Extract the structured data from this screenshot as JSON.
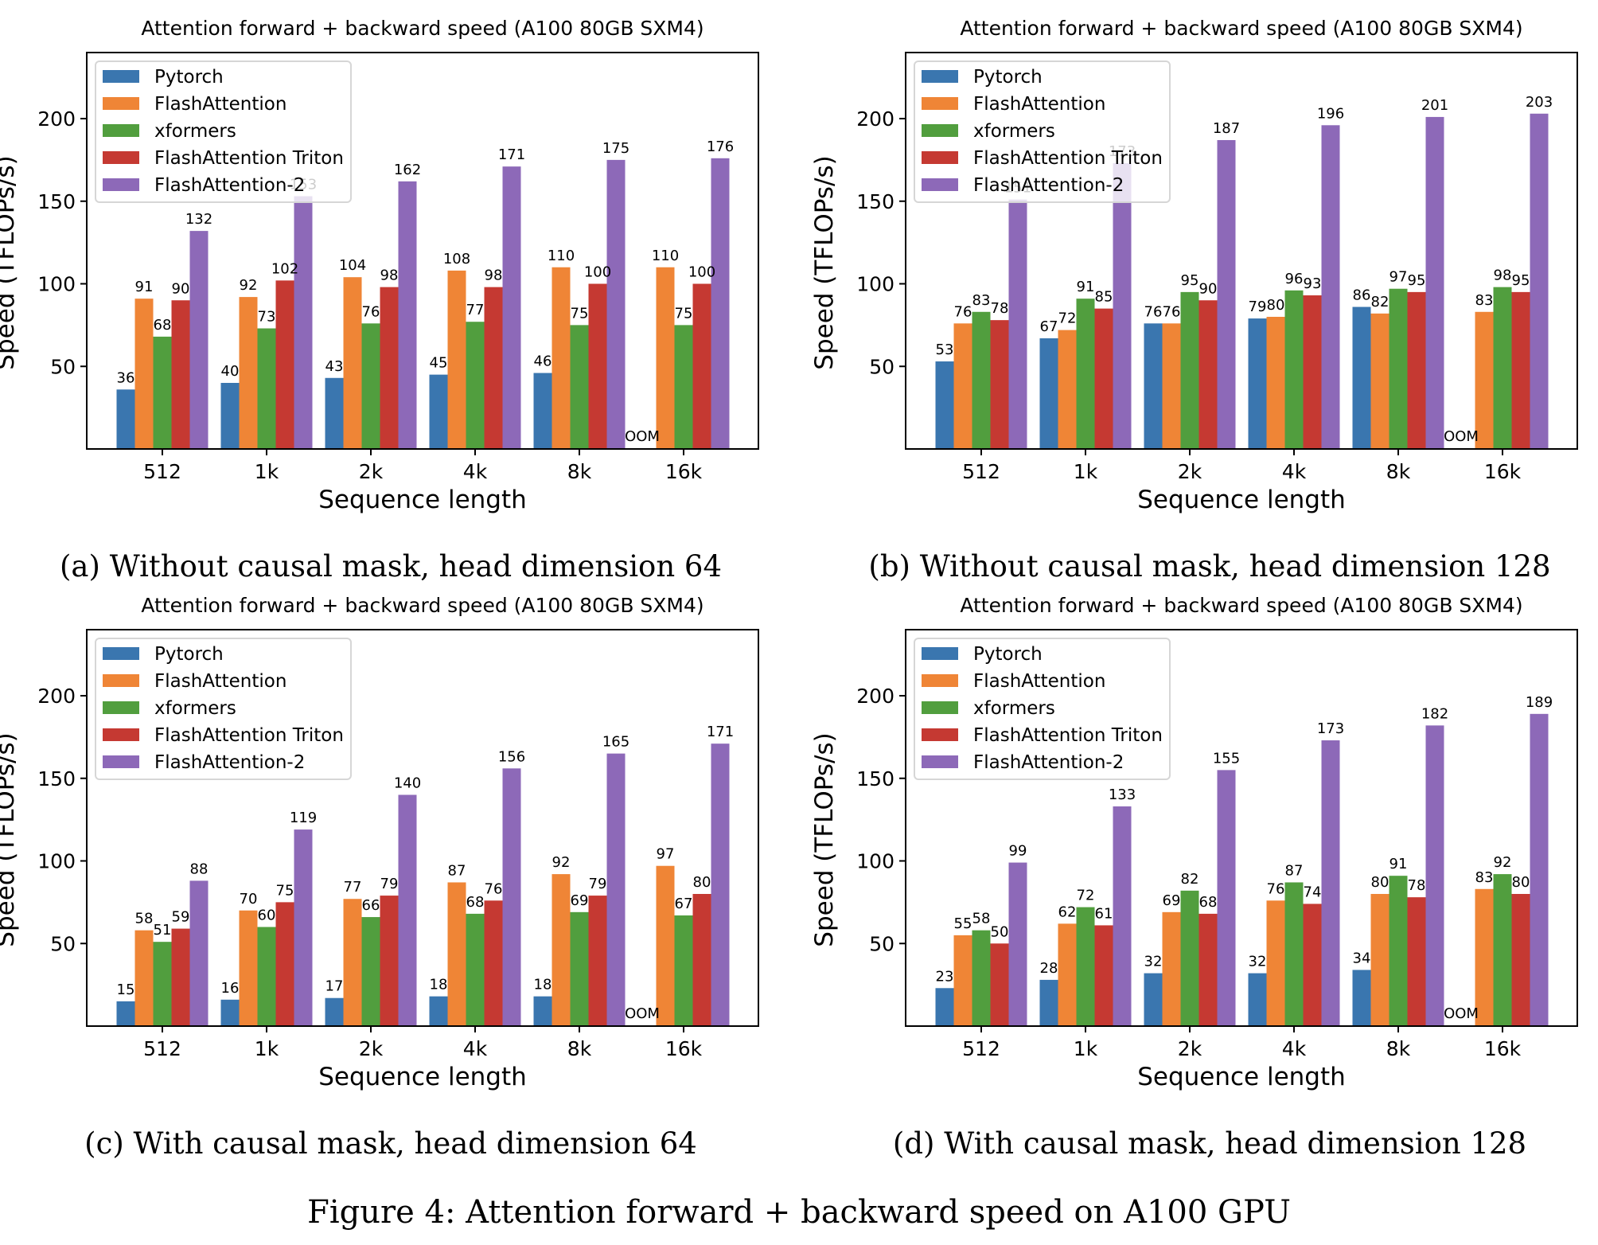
{
  "figure_caption": "Figure 4: Attention forward + backward speed on A100 GPU",
  "chart_data": [
    {
      "type": "bar",
      "panel": "a",
      "caption": "(a) Without causal mask, head dimension 64",
      "title": "Attention forward + backward speed (A100 80GB SXM4)",
      "xlabel": "Sequence length",
      "ylabel": "Speed (TFLOPs/s)",
      "ylim": [
        0,
        240
      ],
      "yticks": [
        50,
        100,
        150,
        200
      ],
      "categories": [
        "512",
        "1k",
        "2k",
        "4k",
        "8k",
        "16k"
      ],
      "legend_position": "top-left",
      "series": [
        {
          "name": "Pytorch",
          "color": "#3a76af",
          "values": [
            36,
            40,
            43,
            45,
            46,
            null
          ]
        },
        {
          "name": "FlashAttention",
          "color": "#ef8536",
          "values": [
            91,
            92,
            104,
            108,
            110,
            110
          ]
        },
        {
          "name": "xformers",
          "color": "#519e3e",
          "values": [
            68,
            73,
            76,
            77,
            75,
            75
          ]
        },
        {
          "name": "FlashAttention Triton",
          "color": "#c53932",
          "values": [
            90,
            102,
            98,
            98,
            100,
            100
          ]
        },
        {
          "name": "FlashAttention-2",
          "color": "#8d69b8",
          "values": [
            132,
            153,
            162,
            171,
            175,
            176
          ]
        }
      ],
      "annotations": [
        {
          "category": "16k",
          "series": "Pytorch",
          "text": "OOM"
        }
      ]
    },
    {
      "type": "bar",
      "panel": "b",
      "caption": "(b) Without causal mask, head dimension 128",
      "title": "Attention forward + backward speed (A100 80GB SXM4)",
      "xlabel": "Sequence length",
      "ylabel": "Speed (TFLOPs/s)",
      "ylim": [
        0,
        240
      ],
      "yticks": [
        50,
        100,
        150,
        200
      ],
      "categories": [
        "512",
        "1k",
        "2k",
        "4k",
        "8k",
        "16k"
      ],
      "legend_position": "top-left",
      "series": [
        {
          "name": "Pytorch",
          "color": "#3a76af",
          "values": [
            53,
            67,
            76,
            79,
            86,
            null
          ]
        },
        {
          "name": "FlashAttention",
          "color": "#ef8536",
          "values": [
            76,
            72,
            76,
            80,
            82,
            83
          ]
        },
        {
          "name": "xformers",
          "color": "#519e3e",
          "values": [
            83,
            91,
            95,
            96,
            97,
            98
          ]
        },
        {
          "name": "FlashAttention Triton",
          "color": "#c53932",
          "values": [
            78,
            85,
            90,
            93,
            95,
            95
          ]
        },
        {
          "name": "FlashAttention-2",
          "color": "#8d69b8",
          "values": [
            151,
            173,
            187,
            196,
            201,
            203
          ]
        }
      ],
      "annotations": [
        {
          "category": "16k",
          "series": "Pytorch",
          "text": "OOM"
        }
      ]
    },
    {
      "type": "bar",
      "panel": "c",
      "caption": "(c) With causal mask, head dimension 64",
      "title": "Attention forward + backward speed (A100 80GB SXM4)",
      "xlabel": "Sequence length",
      "ylabel": "Speed (TFLOPs/s)",
      "ylim": [
        0,
        240
      ],
      "yticks": [
        50,
        100,
        150,
        200
      ],
      "categories": [
        "512",
        "1k",
        "2k",
        "4k",
        "8k",
        "16k"
      ],
      "legend_position": "top-left",
      "series": [
        {
          "name": "Pytorch",
          "color": "#3a76af",
          "values": [
            15,
            16,
            17,
            18,
            18,
            null
          ]
        },
        {
          "name": "FlashAttention",
          "color": "#ef8536",
          "values": [
            58,
            70,
            77,
            87,
            92,
            97
          ]
        },
        {
          "name": "xformers",
          "color": "#519e3e",
          "values": [
            51,
            60,
            66,
            68,
            69,
            67
          ]
        },
        {
          "name": "FlashAttention Triton",
          "color": "#c53932",
          "values": [
            59,
            75,
            79,
            76,
            79,
            80
          ]
        },
        {
          "name": "FlashAttention-2",
          "color": "#8d69b8",
          "values": [
            88,
            119,
            140,
            156,
            165,
            171
          ]
        }
      ],
      "annotations": [
        {
          "category": "16k",
          "series": "Pytorch",
          "text": "OOM"
        }
      ]
    },
    {
      "type": "bar",
      "panel": "d",
      "caption": "(d) With causal mask, head dimension 128",
      "title": "Attention forward + backward speed (A100 80GB SXM4)",
      "xlabel": "Sequence length",
      "ylabel": "Speed (TFLOPs/s)",
      "ylim": [
        0,
        240
      ],
      "yticks": [
        50,
        100,
        150,
        200
      ],
      "categories": [
        "512",
        "1k",
        "2k",
        "4k",
        "8k",
        "16k"
      ],
      "legend_position": "top-left",
      "series": [
        {
          "name": "Pytorch",
          "color": "#3a76af",
          "values": [
            23,
            28,
            32,
            32,
            34,
            null
          ]
        },
        {
          "name": "FlashAttention",
          "color": "#ef8536",
          "values": [
            55,
            62,
            69,
            76,
            80,
            83
          ]
        },
        {
          "name": "xformers",
          "color": "#519e3e",
          "values": [
            58,
            72,
            82,
            87,
            91,
            92
          ]
        },
        {
          "name": "FlashAttention Triton",
          "color": "#c53932",
          "values": [
            50,
            61,
            68,
            74,
            78,
            80
          ]
        },
        {
          "name": "FlashAttention-2",
          "color": "#8d69b8",
          "values": [
            99,
            133,
            155,
            173,
            182,
            189
          ]
        }
      ],
      "annotations": [
        {
          "category": "16k",
          "series": "Pytorch",
          "text": "OOM"
        }
      ]
    }
  ]
}
